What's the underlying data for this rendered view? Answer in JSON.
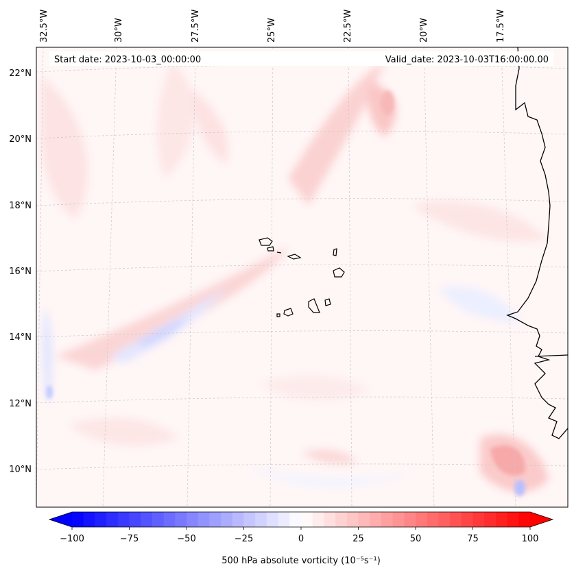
{
  "map": {
    "start_date": "Start date: 2023-10-03_00:00:00",
    "valid_date": "Valid_date: 2023-10-03T16:00:00.00",
    "lon_labels": [
      "32.5°W",
      "30°W",
      "27.5°W",
      "25°W",
      "22.5°W",
      "20°W",
      "17.5°W"
    ],
    "lat_labels": [
      "22°N",
      "20°N",
      "18°N",
      "16°N",
      "14°N",
      "12°N",
      "10°N"
    ],
    "projection": "Lambert conformal (curved graticule)",
    "gridlines": true,
    "field": "500 hPa absolute vorticity",
    "features": [
      "Cape Verde islands",
      "West African coastline"
    ]
  },
  "colorbar": {
    "label": "500 hPa absolute vorticity (10⁻⁵s⁻¹)",
    "ticks": [
      "−100",
      "−75",
      "−50",
      "−25",
      "0",
      "25",
      "50",
      "75",
      "100"
    ],
    "range": [
      -100,
      100
    ],
    "levels": 41,
    "colormap": "bwr",
    "extend": "both",
    "neg_color": "#0000ff",
    "mid_color": "#ffffff",
    "pos_color": "#ff0000"
  }
}
